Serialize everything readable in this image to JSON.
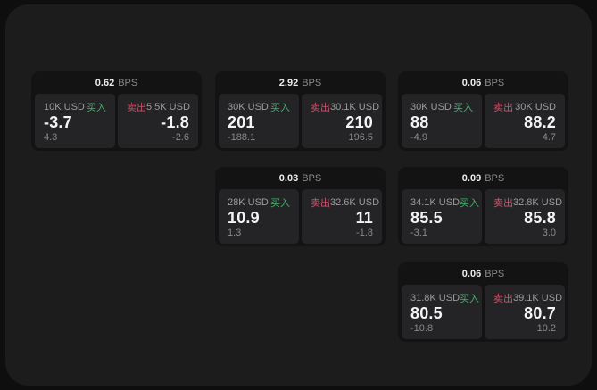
{
  "app": {
    "unit_label": "BPS",
    "buy_label": "买入",
    "sell_label": "卖出"
  },
  "colors": {
    "background": "#0e0e0f",
    "panel": "#1c1c1d",
    "card": "#131314",
    "subcard": "#242427",
    "buy_accent": "#43b06a",
    "sell_accent": "#cd5268",
    "primary_text": "#f4f4f4",
    "muted_text": "#9c9c9c"
  },
  "cards": [
    {
      "bps": "0.62",
      "buy": {
        "size": "10K USD",
        "price": "-3.7",
        "delta": "4.3"
      },
      "sell": {
        "size": "5.5K USD",
        "price": "-1.8",
        "delta": "-2.6"
      }
    },
    {
      "bps": "2.92",
      "buy": {
        "size": "30K USD",
        "price": "201",
        "delta": "-188.1"
      },
      "sell": {
        "size": "30.1K USD",
        "price": "210",
        "delta": "196.5"
      }
    },
    {
      "bps": "0.06",
      "buy": {
        "size": "30K USD",
        "price": "88",
        "delta": "-4.9"
      },
      "sell": {
        "size": "30K USD",
        "price": "88.2",
        "delta": "4.7"
      }
    },
    {
      "bps": "0.03",
      "buy": {
        "size": "28K USD",
        "price": "10.9",
        "delta": "1.3"
      },
      "sell": {
        "size": "32.6K USD",
        "price": "11",
        "delta": "-1.8"
      }
    },
    {
      "bps": "0.09",
      "buy": {
        "size": "34.1K USD",
        "price": "85.5",
        "delta": "-3.1"
      },
      "sell": {
        "size": "32.8K USD",
        "price": "85.8",
        "delta": "3.0"
      }
    },
    {
      "bps": "0.06",
      "buy": {
        "size": "31.8K USD",
        "price": "80.5",
        "delta": "-10.8"
      },
      "sell": {
        "size": "39.1K USD",
        "price": "80.7",
        "delta": "10.2"
      }
    }
  ]
}
